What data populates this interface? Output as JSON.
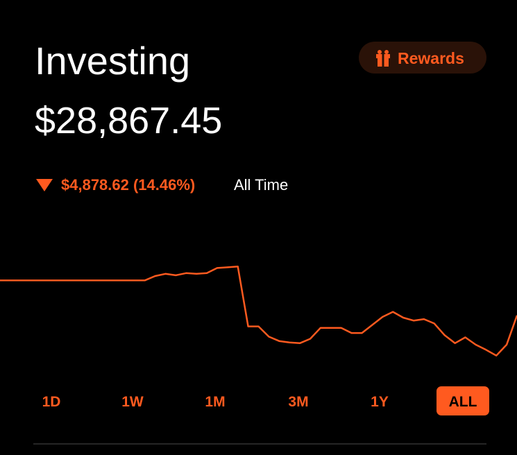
{
  "header": {
    "title": "Investing",
    "value": "$28,867.45"
  },
  "rewards": {
    "label": "Rewards"
  },
  "change": {
    "amount": "$4,878.62 (14.46%)",
    "period": "All Time"
  },
  "chart_data": {
    "type": "line",
    "color": "#ff5a1f",
    "ylim": [
      21000,
      40000
    ],
    "values": [
      33700,
      33700,
      33700,
      33700,
      33700,
      33700,
      33700,
      33700,
      33700,
      33700,
      33700,
      33700,
      33700,
      33700,
      33700,
      34300,
      34600,
      34400,
      34700,
      34600,
      34700,
      35400,
      35500,
      35600,
      27400,
      27400,
      26000,
      25400,
      25200,
      25100,
      25700,
      27200,
      27200,
      27200,
      26500,
      26500,
      27600,
      28700,
      29400,
      28600,
      28200,
      28400,
      27800,
      26200,
      25100,
      25900,
      24900,
      24200,
      23400,
      24900,
      28900
    ]
  },
  "ranges": {
    "labels": [
      "1D",
      "1W",
      "1M",
      "3M",
      "1Y",
      "ALL"
    ],
    "selected": 5
  }
}
